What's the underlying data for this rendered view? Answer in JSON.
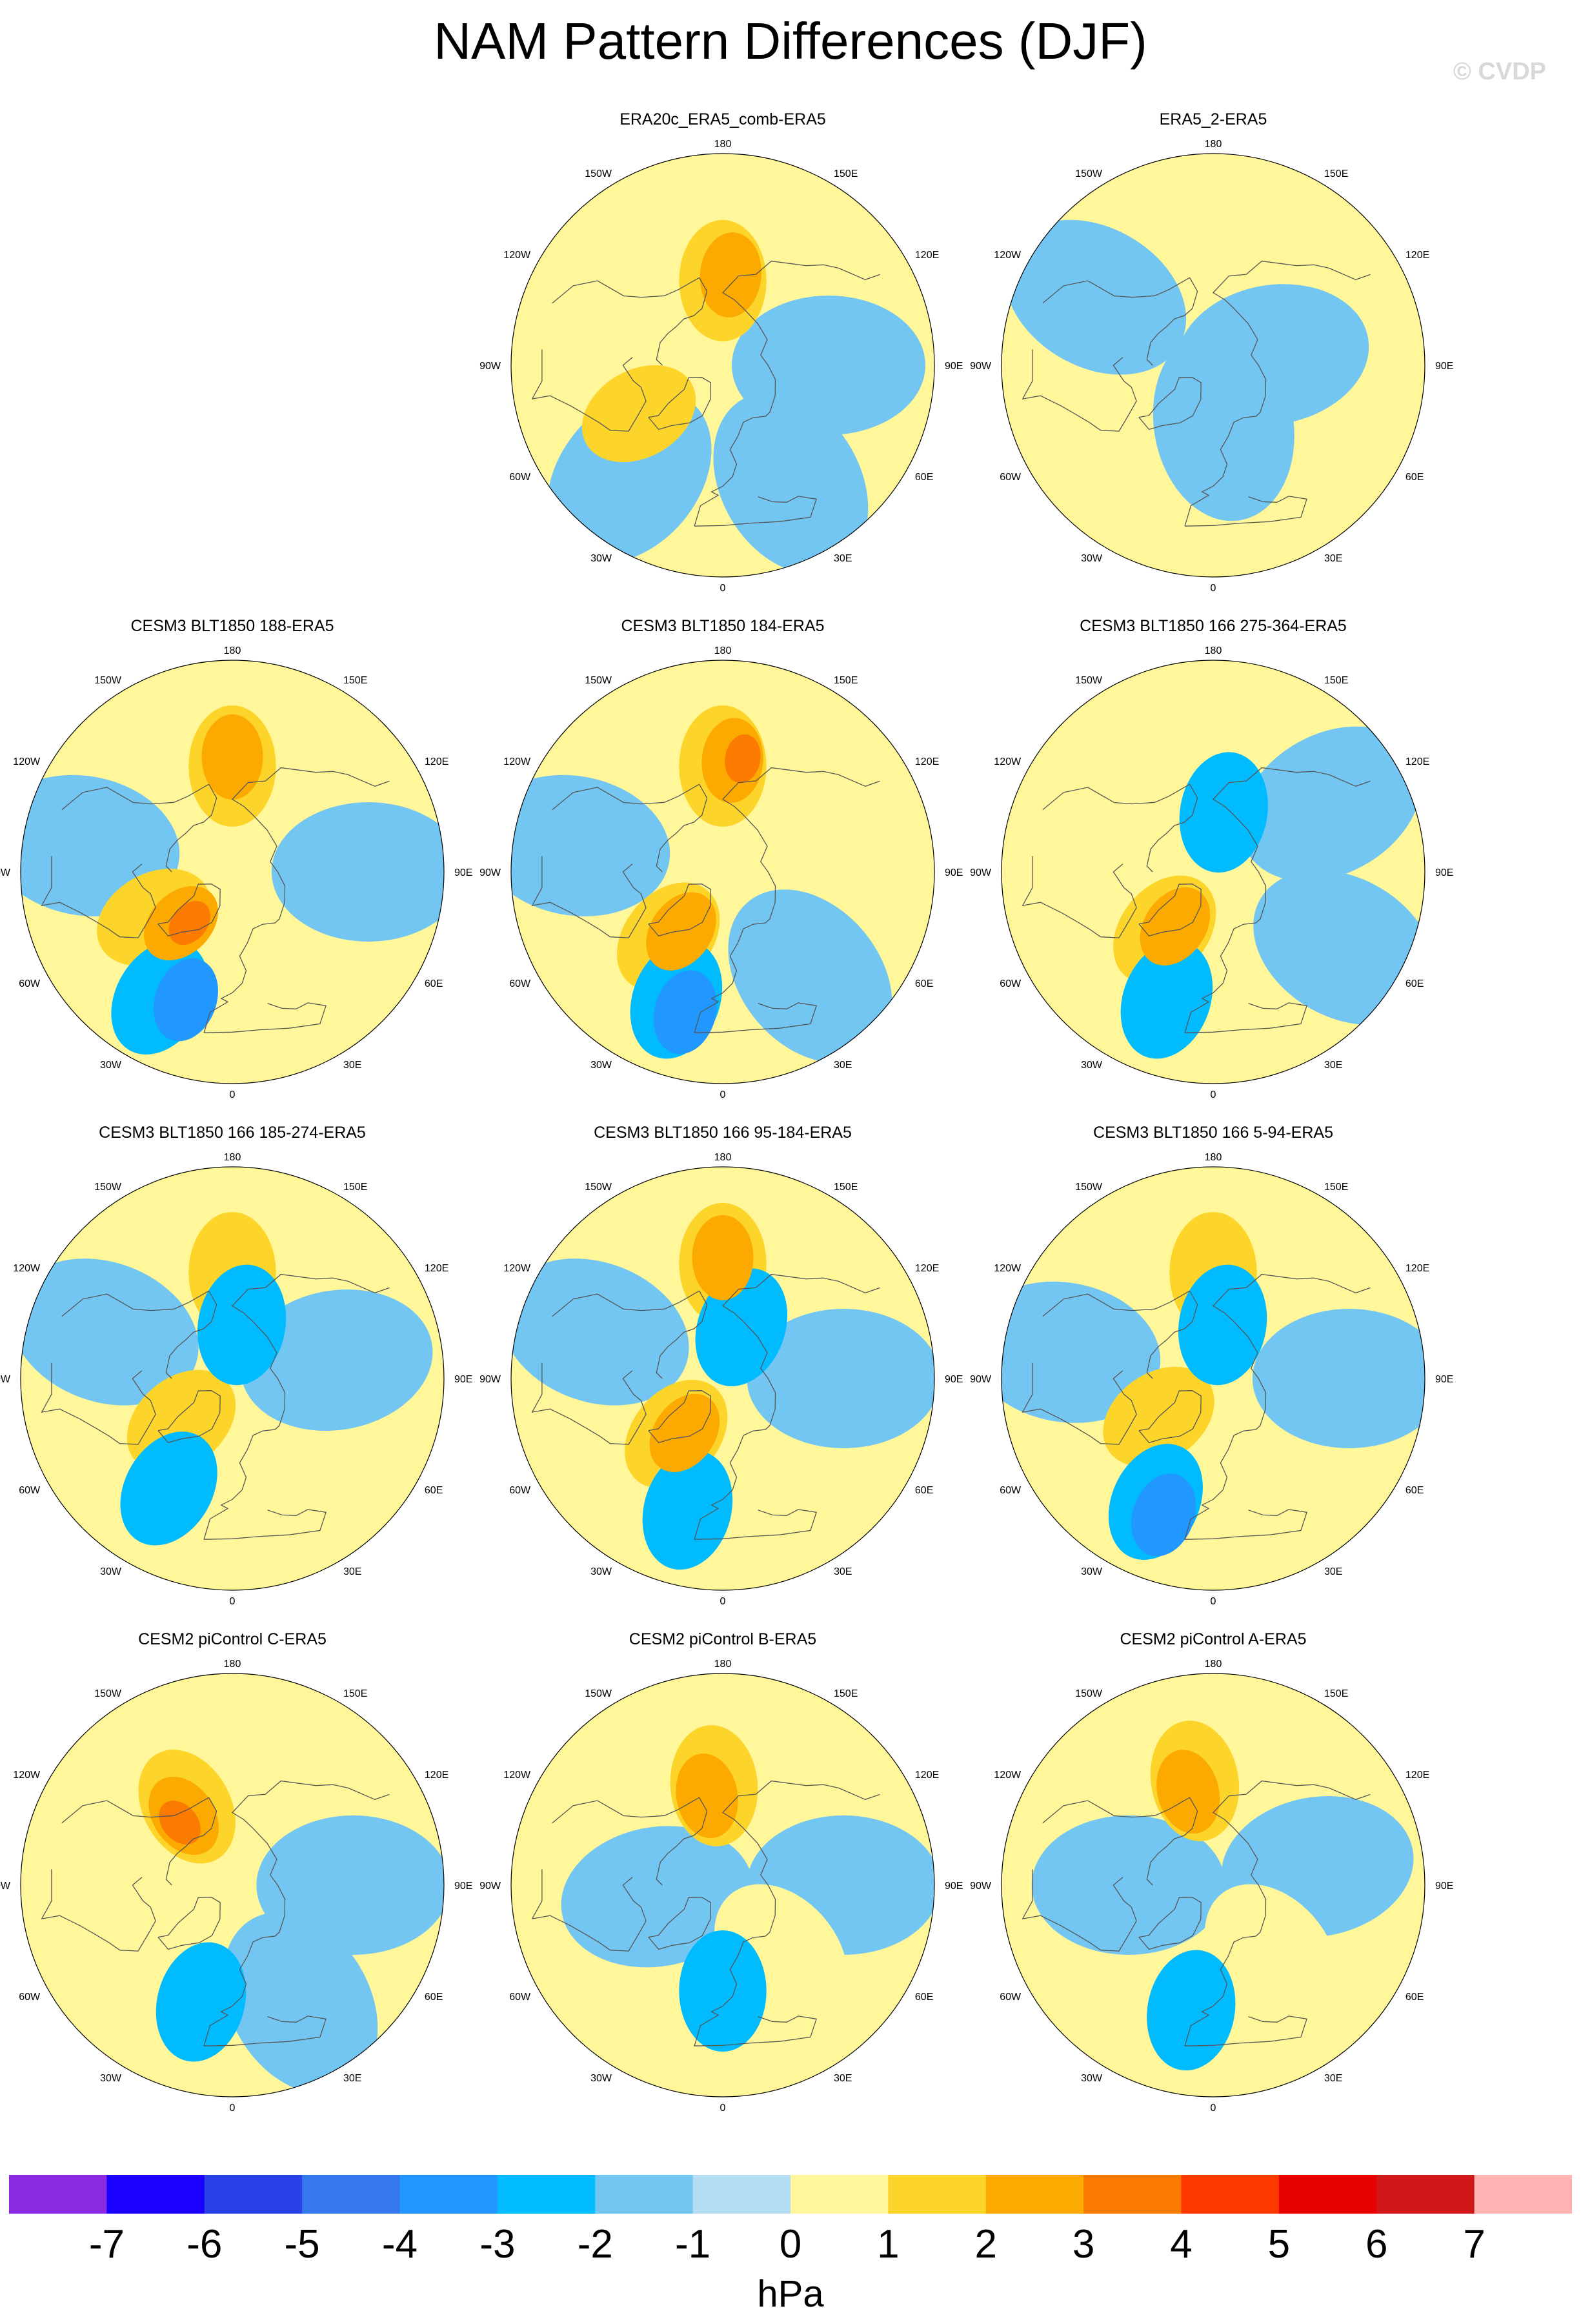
{
  "title": "NAM Pattern Differences (DJF)",
  "credit": "© CVDP",
  "colors": {
    "palette": [
      "#8a2be2",
      "#1a00ff",
      "#2a40e8",
      "#3578ee",
      "#2098ff",
      "#00bbff",
      "#73c6f2",
      "#b4dcf2",
      "#fff79a",
      "#fdd52a",
      "#fcaa00",
      "#fb7a00",
      "#ff3a00",
      "#e80000",
      "#d0181a",
      "#ffb3b3"
    ],
    "land_outline": "#555555"
  },
  "longitude_labels": [
    "180",
    "150E",
    "120E",
    "90E",
    "60E",
    "30E",
    "0",
    "30W",
    "60W",
    "90W",
    "120W",
    "150W"
  ],
  "panels": [
    {
      "title": "ERA20c_ERA5_comb-ERA5",
      "field": [
        {
          "lon": 180,
          "lat": 62,
          "v": 2
        },
        {
          "lon": 175,
          "lat": 60,
          "v": 3
        },
        {
          "lon": -70,
          "lat": 65,
          "v": 1
        },
        {
          "lon": -60,
          "lat": 58,
          "v": 2
        },
        {
          "lon": -90,
          "lat": 70,
          "v": 1
        },
        {
          "lon": -40,
          "lat": 42,
          "v": -1
        },
        {
          "lon": 30,
          "lat": 45,
          "v": -1
        },
        {
          "lon": 90,
          "lat": 55,
          "v": -1
        }
      ]
    },
    {
      "title": "ERA5_2-ERA5",
      "field": [
        {
          "lon": 180,
          "lat": 45,
          "v": 1
        },
        {
          "lon": -150,
          "lat": 65,
          "v": 1
        },
        {
          "lon": -75,
          "lat": 55,
          "v": 1
        },
        {
          "lon": 45,
          "lat": 40,
          "v": 1
        },
        {
          "lon": 90,
          "lat": 40,
          "v": 1
        },
        {
          "lon": -120,
          "lat": 45,
          "v": -1
        },
        {
          "lon": 10,
          "lat": 70,
          "v": -1
        },
        {
          "lon": 100,
          "lat": 70,
          "v": -1
        }
      ]
    },
    {
      "title": "CESM3 BLT1850 188-ERA5",
      "field": [
        {
          "lon": 180,
          "lat": 55,
          "v": 2
        },
        {
          "lon": 180,
          "lat": 52,
          "v": 3
        },
        {
          "lon": -60,
          "lat": 60,
          "v": 2
        },
        {
          "lon": -45,
          "lat": 66,
          "v": 3
        },
        {
          "lon": -40,
          "lat": 68,
          "v": 4
        },
        {
          "lon": -30,
          "lat": 42,
          "v": -2
        },
        {
          "lon": -20,
          "lat": 45,
          "v": -3
        },
        {
          "lon": -100,
          "lat": 40,
          "v": -1
        },
        {
          "lon": 90,
          "lat": 45,
          "v": -1
        }
      ]
    },
    {
      "title": "CESM3 BLT1850 184-ERA5",
      "field": [
        {
          "lon": 180,
          "lat": 55,
          "v": 2
        },
        {
          "lon": 175,
          "lat": 53,
          "v": 3
        },
        {
          "lon": 170,
          "lat": 52,
          "v": 4
        },
        {
          "lon": -40,
          "lat": 62,
          "v": 2
        },
        {
          "lon": -35,
          "lat": 66,
          "v": 3
        },
        {
          "lon": -20,
          "lat": 45,
          "v": -2
        },
        {
          "lon": -15,
          "lat": 42,
          "v": -3
        },
        {
          "lon": -100,
          "lat": 40,
          "v": -1
        },
        {
          "lon": 40,
          "lat": 45,
          "v": -1
        }
      ]
    },
    {
      "title": "CESM3 BLT1850 166 275-364-ERA5",
      "field": [
        {
          "lon": -40,
          "lat": 65,
          "v": 2
        },
        {
          "lon": -35,
          "lat": 68,
          "v": 3
        },
        {
          "lon": 170,
          "lat": 70,
          "v": -2
        },
        {
          "lon": -20,
          "lat": 45,
          "v": -2
        },
        {
          "lon": -150,
          "lat": 45,
          "v": 1
        },
        {
          "lon": 150,
          "lat": 45,
          "v": 1
        },
        {
          "lon": 60,
          "lat": 40,
          "v": -1
        },
        {
          "lon": 120,
          "lat": 45,
          "v": -1
        }
      ]
    },
    {
      "title": "CESM3 BLT1850 166 185-274-ERA5",
      "field": [
        {
          "lon": 180,
          "lat": 55,
          "v": 2
        },
        {
          "lon": -50,
          "lat": 68,
          "v": 2
        },
        {
          "lon": -30,
          "lat": 48,
          "v": -2
        },
        {
          "lon": 170,
          "lat": 72,
          "v": -2
        },
        {
          "lon": 100,
          "lat": 55,
          "v": -1
        },
        {
          "lon": -110,
          "lat": 45,
          "v": -1
        }
      ]
    },
    {
      "title": "CESM3 BLT1850 166 95-184-ERA5",
      "field": [
        {
          "lon": 180,
          "lat": 52,
          "v": 2
        },
        {
          "lon": 180,
          "lat": 50,
          "v": 3
        },
        {
          "lon": -40,
          "lat": 66,
          "v": 2
        },
        {
          "lon": -35,
          "lat": 68,
          "v": 3
        },
        {
          "lon": -15,
          "lat": 45,
          "v": -2
        },
        {
          "lon": 160,
          "lat": 72,
          "v": -2
        },
        {
          "lon": -110,
          "lat": 45,
          "v": -1
        },
        {
          "lon": 90,
          "lat": 50,
          "v": -1
        }
      ]
    },
    {
      "title": "CESM3 BLT1850 166 5-94-ERA5",
      "field": [
        {
          "lon": 180,
          "lat": 55,
          "v": 2
        },
        {
          "lon": -55,
          "lat": 68,
          "v": 2
        },
        {
          "lon": -25,
          "lat": 45,
          "v": -2
        },
        {
          "lon": -20,
          "lat": 42,
          "v": -3
        },
        {
          "lon": 170,
          "lat": 72,
          "v": -2
        },
        {
          "lon": 90,
          "lat": 45,
          "v": -1
        },
        {
          "lon": -100,
          "lat": 40,
          "v": -1
        }
      ]
    },
    {
      "title": "CESM2 piControl C-ERA5",
      "field": [
        {
          "lon": -150,
          "lat": 60,
          "v": 2
        },
        {
          "lon": -145,
          "lat": 62,
          "v": 3
        },
        {
          "lon": -140,
          "lat": 63,
          "v": 4
        },
        {
          "lon": -20,
          "lat": 65,
          "v": 1
        },
        {
          "lon": -15,
          "lat": 50,
          "v": -2
        },
        {
          "lon": 90,
          "lat": 50,
          "v": -1
        },
        {
          "lon": 30,
          "lat": 45,
          "v": -1
        }
      ]
    },
    {
      "title": "CESM2 piControl B-ERA5",
      "field": [
        {
          "lon": -175,
          "lat": 57,
          "v": 2
        },
        {
          "lon": -170,
          "lat": 60,
          "v": 3
        },
        {
          "lon": 0,
          "lat": 55,
          "v": -2
        },
        {
          "lon": -80,
          "lat": 68,
          "v": -1
        },
        {
          "lon": 90,
          "lat": 50,
          "v": -1
        },
        {
          "lon": 40,
          "lat": 60,
          "v": 1
        }
      ]
    },
    {
      "title": "CESM2 piControl A-ERA5",
      "field": [
        {
          "lon": -170,
          "lat": 55,
          "v": 2
        },
        {
          "lon": -165,
          "lat": 58,
          "v": 3
        },
        {
          "lon": -10,
          "lat": 48,
          "v": -2
        },
        {
          "lon": 100,
          "lat": 55,
          "v": -1
        },
        {
          "lon": -90,
          "lat": 62,
          "v": -1
        },
        {
          "lon": 40,
          "lat": 60,
          "v": 1
        }
      ]
    }
  ],
  "colorbar": {
    "labels": [
      "-7",
      "-6",
      "-5",
      "-4",
      "-3",
      "-2",
      "-1",
      "0",
      "1",
      "2",
      "3",
      "4",
      "5",
      "6",
      "7"
    ],
    "units": "hPa"
  }
}
